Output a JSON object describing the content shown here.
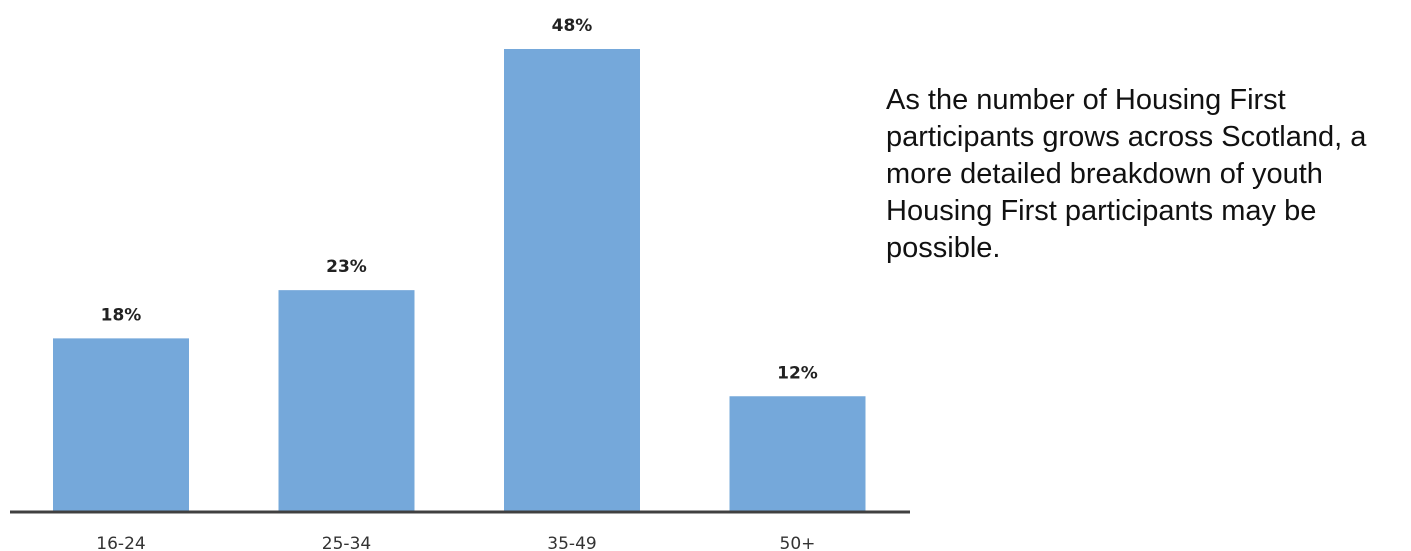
{
  "chart_data": {
    "type": "bar",
    "categories": [
      "16-24",
      "25-34",
      "35-49",
      "50+"
    ],
    "values": [
      18,
      23,
      48,
      12
    ],
    "value_labels": [
      "18%",
      "23%",
      "48%",
      "12%"
    ],
    "unit": "%",
    "title": "",
    "xlabel": "",
    "ylabel": "",
    "ylim": [
      0,
      50
    ],
    "grid": false,
    "legend": "none",
    "bar_color": "#75A8DA",
    "axis_color": "#404040"
  },
  "side_text": "As the number of Housing First participants grows across Scotland, a more detailed breakdown of youth Housing First participants may be possible."
}
